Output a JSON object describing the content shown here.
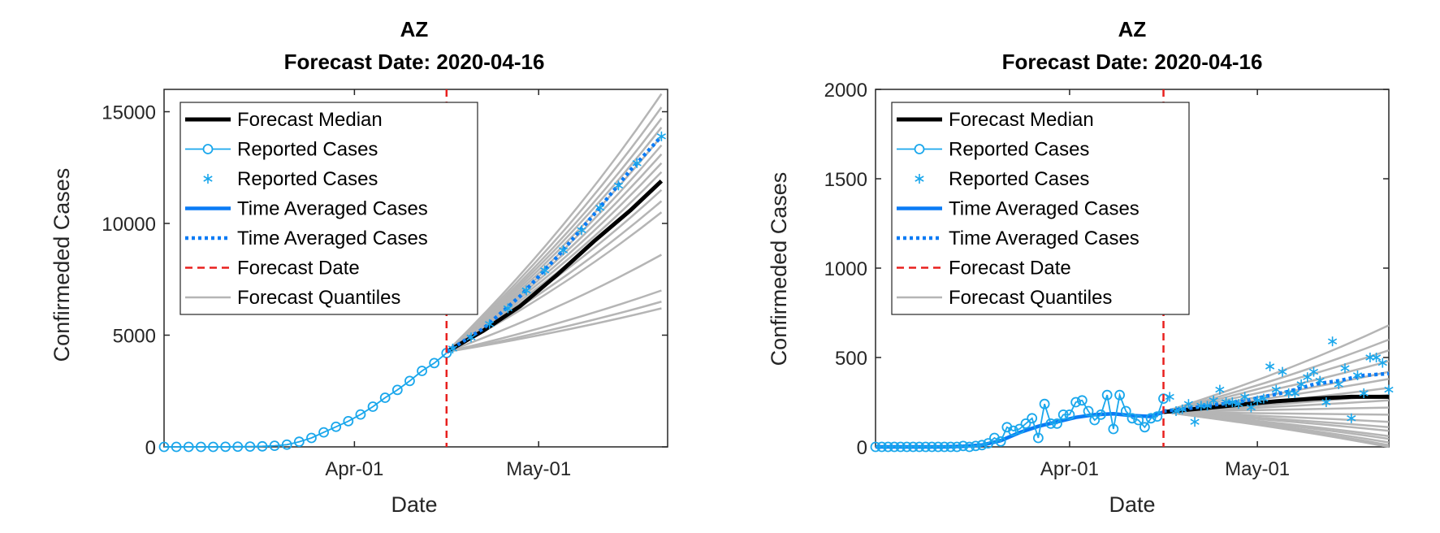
{
  "colors": {
    "median": "#000000",
    "reported": "#1aa7ec",
    "averaged": "#0a7bf5",
    "forecast_date": "#e8201e",
    "quantiles": "#b5b5b5",
    "axis": "#262626"
  },
  "chart_data": [
    {
      "type": "line",
      "title": "AZ",
      "subtitle": "Forecast Date: 2020-04-16",
      "xlabel": "Date",
      "ylabel": "Confirmeded Cases",
      "xlim": [
        "2020-03-01",
        "2020-05-22"
      ],
      "ylim": [
        0,
        16000
      ],
      "yticks": [
        0,
        5000,
        10000,
        15000
      ],
      "xticks": [
        {
          "date": "2020-04-01",
          "label": "Apr-01"
        },
        {
          "date": "2020-05-01",
          "label": "May-01"
        }
      ],
      "forecast_date": "2020-04-16",
      "grid": false,
      "legend_position": "top-left",
      "legend": [
        "Forecast Median",
        "Reported Cases",
        "Reported Cases",
        "Time Averaged Cases",
        "Time Averaged Cases",
        "Forecast Date",
        "Forecast Quantiles"
      ],
      "reported_cases": [
        [
          "2020-03-01",
          0
        ],
        [
          "2020-03-03",
          0
        ],
        [
          "2020-03-05",
          0
        ],
        [
          "2020-03-07",
          0
        ],
        [
          "2020-03-09",
          0
        ],
        [
          "2020-03-11",
          5
        ],
        [
          "2020-03-13",
          10
        ],
        [
          "2020-03-15",
          15
        ],
        [
          "2020-03-17",
          25
        ],
        [
          "2020-03-19",
          50
        ],
        [
          "2020-03-21",
          100
        ],
        [
          "2020-03-23",
          230
        ],
        [
          "2020-03-25",
          400
        ],
        [
          "2020-03-27",
          650
        ],
        [
          "2020-03-29",
          900
        ],
        [
          "2020-03-31",
          1150
        ],
        [
          "2020-04-02",
          1450
        ],
        [
          "2020-04-04",
          1800
        ],
        [
          "2020-04-06",
          2200
        ],
        [
          "2020-04-08",
          2550
        ],
        [
          "2020-04-10",
          2950
        ],
        [
          "2020-04-12",
          3400
        ],
        [
          "2020-04-14",
          3750
        ],
        [
          "2020-04-16",
          4200
        ]
      ],
      "reported_forecast_period": [
        [
          "2020-04-17",
          4400
        ],
        [
          "2020-04-20",
          4900
        ],
        [
          "2020-04-23",
          5500
        ],
        [
          "2020-04-26",
          6200
        ],
        [
          "2020-04-29",
          7000
        ],
        [
          "2020-05-02",
          7900
        ],
        [
          "2020-05-05",
          8800
        ],
        [
          "2020-05-08",
          9700
        ],
        [
          "2020-05-11",
          10700
        ],
        [
          "2020-05-14",
          11700
        ],
        [
          "2020-05-17",
          12700
        ],
        [
          "2020-05-21",
          13900
        ]
      ],
      "time_averaged_forecast_period": [
        [
          "2020-04-16",
          4250
        ],
        [
          "2020-04-22",
          5300
        ],
        [
          "2020-04-28",
          6750
        ],
        [
          "2020-05-04",
          8500
        ],
        [
          "2020-05-10",
          10400
        ],
        [
          "2020-05-16",
          12400
        ],
        [
          "2020-05-21",
          13900
        ]
      ],
      "forecast_median": [
        [
          "2020-04-16",
          4250
        ],
        [
          "2020-04-22",
          5200
        ],
        [
          "2020-04-28",
          6300
        ],
        [
          "2020-05-04",
          7700
        ],
        [
          "2020-05-10",
          9200
        ],
        [
          "2020-05-16",
          10600
        ],
        [
          "2020-05-21",
          11900
        ]
      ],
      "quantile_end_values": [
        6200,
        6500,
        7000,
        8600,
        10500,
        11000,
        11500,
        11900,
        12300,
        12700,
        13100,
        13500,
        13900,
        14300,
        14700,
        15200,
        15800
      ]
    },
    {
      "type": "line",
      "title": "AZ",
      "subtitle": "Forecast Date: 2020-04-16",
      "xlabel": "Date",
      "ylabel": "Confirmeded Cases",
      "xlim": [
        "2020-03-01",
        "2020-05-22"
      ],
      "ylim": [
        0,
        2000
      ],
      "yticks": [
        0,
        500,
        1000,
        1500,
        2000
      ],
      "xticks": [
        {
          "date": "2020-04-01",
          "label": "Apr-01"
        },
        {
          "date": "2020-05-01",
          "label": "May-01"
        }
      ],
      "forecast_date": "2020-04-16",
      "grid": false,
      "legend_position": "top-left",
      "legend": [
        "Forecast Median",
        "Reported Cases",
        "Reported Cases",
        "Time Averaged Cases",
        "Time Averaged Cases",
        "Forecast Date",
        "Forecast Quantiles"
      ],
      "reported_cases": [
        [
          "2020-03-01",
          0
        ],
        [
          "2020-03-02",
          0
        ],
        [
          "2020-03-03",
          0
        ],
        [
          "2020-03-04",
          0
        ],
        [
          "2020-03-05",
          0
        ],
        [
          "2020-03-06",
          0
        ],
        [
          "2020-03-07",
          0
        ],
        [
          "2020-03-08",
          0
        ],
        [
          "2020-03-09",
          0
        ],
        [
          "2020-03-10",
          0
        ],
        [
          "2020-03-11",
          0
        ],
        [
          "2020-03-12",
          0
        ],
        [
          "2020-03-13",
          0
        ],
        [
          "2020-03-14",
          0
        ],
        [
          "2020-03-15",
          5
        ],
        [
          "2020-03-16",
          0
        ],
        [
          "2020-03-17",
          5
        ],
        [
          "2020-03-18",
          10
        ],
        [
          "2020-03-19",
          20
        ],
        [
          "2020-03-20",
          50
        ],
        [
          "2020-03-21",
          30
        ],
        [
          "2020-03-22",
          110
        ],
        [
          "2020-03-23",
          90
        ],
        [
          "2020-03-24",
          100
        ],
        [
          "2020-03-25",
          130
        ],
        [
          "2020-03-26",
          160
        ],
        [
          "2020-03-27",
          50
        ],
        [
          "2020-03-28",
          240
        ],
        [
          "2020-03-29",
          130
        ],
        [
          "2020-03-30",
          130
        ],
        [
          "2020-03-31",
          180
        ],
        [
          "2020-04-01",
          180
        ],
        [
          "2020-04-02",
          250
        ],
        [
          "2020-04-03",
          260
        ],
        [
          "2020-04-04",
          200
        ],
        [
          "2020-04-05",
          150
        ],
        [
          "2020-04-06",
          180
        ],
        [
          "2020-04-07",
          290
        ],
        [
          "2020-04-08",
          100
        ],
        [
          "2020-04-09",
          290
        ],
        [
          "2020-04-10",
          200
        ],
        [
          "2020-04-11",
          160
        ],
        [
          "2020-04-12",
          150
        ],
        [
          "2020-04-13",
          110
        ],
        [
          "2020-04-14",
          160
        ],
        [
          "2020-04-15",
          170
        ],
        [
          "2020-04-16",
          270
        ]
      ],
      "reported_forecast_period": [
        [
          "2020-04-17",
          280
        ],
        [
          "2020-04-18",
          200
        ],
        [
          "2020-04-19",
          210
        ],
        [
          "2020-04-20",
          240
        ],
        [
          "2020-04-21",
          140
        ],
        [
          "2020-04-22",
          230
        ],
        [
          "2020-04-23",
          230
        ],
        [
          "2020-04-24",
          260
        ],
        [
          "2020-04-25",
          320
        ],
        [
          "2020-04-26",
          250
        ],
        [
          "2020-04-27",
          250
        ],
        [
          "2020-04-28",
          240
        ],
        [
          "2020-04-29",
          280
        ],
        [
          "2020-04-30",
          220
        ],
        [
          "2020-05-01",
          260
        ],
        [
          "2020-05-02",
          270
        ],
        [
          "2020-05-03",
          450
        ],
        [
          "2020-05-04",
          320
        ],
        [
          "2020-05-05",
          420
        ],
        [
          "2020-05-06",
          300
        ],
        [
          "2020-05-07",
          300
        ],
        [
          "2020-05-08",
          350
        ],
        [
          "2020-05-09",
          390
        ],
        [
          "2020-05-10",
          420
        ],
        [
          "2020-05-11",
          370
        ],
        [
          "2020-05-12",
          250
        ],
        [
          "2020-05-13",
          590
        ],
        [
          "2020-05-14",
          350
        ],
        [
          "2020-05-15",
          440
        ],
        [
          "2020-05-16",
          160
        ],
        [
          "2020-05-17",
          400
        ],
        [
          "2020-05-18",
          300
        ],
        [
          "2020-05-19",
          500
        ],
        [
          "2020-05-20",
          500
        ],
        [
          "2020-05-21",
          470
        ],
        [
          "2020-05-22",
          320
        ]
      ],
      "time_averaged_reported": [
        [
          "2020-03-01",
          0
        ],
        [
          "2020-03-12",
          0
        ],
        [
          "2020-03-15",
          3
        ],
        [
          "2020-03-18",
          10
        ],
        [
          "2020-03-21",
          35
        ],
        [
          "2020-03-24",
          80
        ],
        [
          "2020-03-27",
          115
        ],
        [
          "2020-03-30",
          140
        ],
        [
          "2020-04-02",
          165
        ],
        [
          "2020-04-05",
          180
        ],
        [
          "2020-04-08",
          185
        ],
        [
          "2020-04-11",
          175
        ],
        [
          "2020-04-14",
          170
        ],
        [
          "2020-04-16",
          195
        ]
      ],
      "time_averaged_forecast_period": [
        [
          "2020-04-16",
          200
        ],
        [
          "2020-04-20",
          215
        ],
        [
          "2020-04-24",
          235
        ],
        [
          "2020-04-28",
          250
        ],
        [
          "2020-05-02",
          280
        ],
        [
          "2020-05-06",
          310
        ],
        [
          "2020-05-10",
          350
        ],
        [
          "2020-05-14",
          370
        ],
        [
          "2020-05-18",
          400
        ],
        [
          "2020-05-22",
          410
        ]
      ],
      "forecast_median": [
        [
          "2020-04-16",
          195
        ],
        [
          "2020-04-22",
          215
        ],
        [
          "2020-04-28",
          235
        ],
        [
          "2020-05-04",
          255
        ],
        [
          "2020-05-10",
          270
        ],
        [
          "2020-05-16",
          280
        ],
        [
          "2020-05-22",
          280
        ]
      ],
      "quantile_end_values": [
        0,
        10,
        25,
        45,
        60,
        90,
        110,
        140,
        180,
        220,
        260,
        290,
        330,
        380,
        420,
        480,
        540,
        600,
        680
      ]
    }
  ]
}
